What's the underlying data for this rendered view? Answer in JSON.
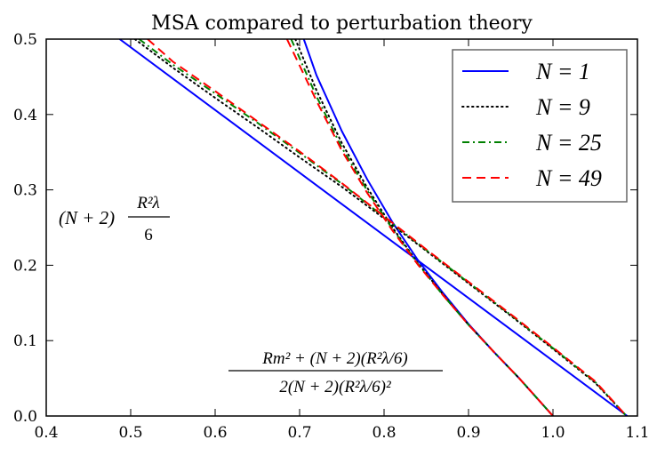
{
  "chart_data": {
    "type": "line",
    "title": "MSA compared to perturbation theory",
    "xlim": [
      0.4,
      1.1
    ],
    "ylim": [
      0.0,
      0.5
    ],
    "xticks": [
      "0.4",
      "0.5",
      "0.6",
      "0.7",
      "0.8",
      "0.9",
      "1.0",
      "1.1"
    ],
    "yticks": [
      "0.0",
      "0.1",
      "0.2",
      "0.3",
      "0.4",
      "0.5"
    ],
    "annotations": {
      "upper": {
        "prefix": "(N + 2)",
        "numerator": "R²λ",
        "denominator": "6"
      },
      "lower": {
        "numerator": "Rm² + (N + 2)(R²λ/6)",
        "denominator": "2(N + 2)(R²λ/6)²"
      }
    },
    "series": [
      {
        "name": "N = 1",
        "color": "#0000ff",
        "dash": "solid",
        "lines": [
          {
            "x": [
              0.487,
              1.088
            ],
            "y": [
              0.5,
              0.0
            ]
          },
          {
            "x": [
              0.705,
              0.72,
              0.75,
              0.78,
              0.81,
              0.84,
              0.87,
              0.9,
              0.93,
              0.96,
              1.0
            ],
            "y": [
              0.5,
              0.452,
              0.378,
              0.314,
              0.257,
              0.207,
              0.163,
              0.122,
              0.085,
              0.05,
              0.0
            ]
          }
        ]
      },
      {
        "name": "N = 9",
        "color": "#000000",
        "dash": "dotted",
        "lines": [
          {
            "x": [
              0.505,
              0.55,
              0.6,
              0.65,
              0.7,
              0.75,
              0.8,
              0.85,
              0.9,
              0.95,
              1.0,
              1.05,
              1.087
            ],
            "y": [
              0.5,
              0.462,
              0.422,
              0.383,
              0.343,
              0.304,
              0.262,
              0.219,
              0.176,
              0.133,
              0.089,
              0.044,
              0.0
            ]
          },
          {
            "x": [
              0.695,
              0.72,
              0.75,
              0.78,
              0.81,
              0.84,
              0.87,
              0.9,
              0.93,
              0.96,
              1.0
            ],
            "y": [
              0.5,
              0.432,
              0.362,
              0.303,
              0.25,
              0.203,
              0.161,
              0.121,
              0.085,
              0.05,
              0.0
            ]
          }
        ]
      },
      {
        "name": "N = 25",
        "color": "#008000",
        "dash": "dashdot",
        "lines": [
          {
            "x": [
              0.51,
              0.55,
              0.6,
              0.65,
              0.7,
              0.75,
              0.8,
              0.85,
              0.9,
              0.95,
              1.0,
              1.05,
              1.087
            ],
            "y": [
              0.5,
              0.466,
              0.428,
              0.389,
              0.349,
              0.308,
              0.264,
              0.22,
              0.177,
              0.134,
              0.09,
              0.045,
              0.0
            ]
          },
          {
            "x": [
              0.69,
              0.72,
              0.75,
              0.78,
              0.81,
              0.84,
              0.87,
              0.9,
              0.93,
              0.96,
              1.0
            ],
            "y": [
              0.5,
              0.424,
              0.356,
              0.299,
              0.248,
              0.202,
              0.16,
              0.121,
              0.085,
              0.05,
              0.0
            ]
          }
        ]
      },
      {
        "name": "N = 49",
        "color": "#ff0000",
        "dash": "dashed",
        "lines": [
          {
            "x": [
              0.52,
              0.55,
              0.6,
              0.65,
              0.7,
              0.75,
              0.8,
              0.85,
              0.9,
              0.95,
              1.0,
              1.05,
              1.087
            ],
            "y": [
              0.5,
              0.47,
              0.431,
              0.391,
              0.351,
              0.309,
              0.265,
              0.221,
              0.178,
              0.135,
              0.091,
              0.046,
              0.0
            ]
          },
          {
            "x": [
              0.685,
              0.72,
              0.75,
              0.78,
              0.81,
              0.84,
              0.87,
              0.9,
              0.93,
              0.96,
              1.0
            ],
            "y": [
              0.5,
              0.418,
              0.352,
              0.296,
              0.246,
              0.201,
              0.16,
              0.121,
              0.085,
              0.05,
              0.0
            ]
          }
        ]
      }
    ],
    "legend": {
      "position": "top-right",
      "entries": [
        "N = 1",
        "N = 9",
        "N = 25",
        "N = 49"
      ]
    }
  }
}
